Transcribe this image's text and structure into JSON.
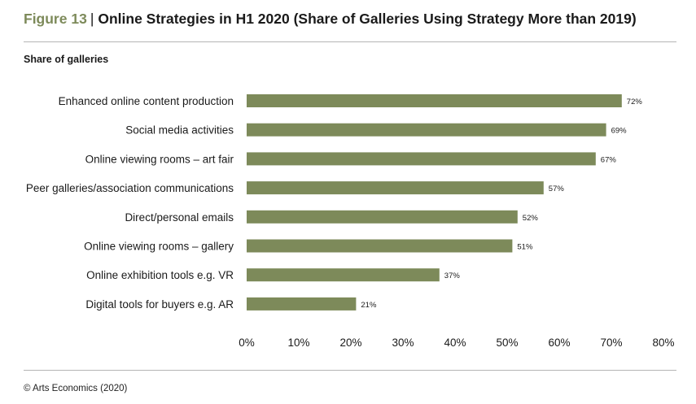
{
  "header": {
    "figure_label": "Figure 13",
    "separator": "|",
    "title": "Online Strategies in H1 2020 (Share of Galleries Using Strategy More than 2019)"
  },
  "subtitle": "Share of galleries",
  "footer": "© Arts Economics (2020)",
  "colors": {
    "bar": "#7d8a5a",
    "accent": "#7d8a5a",
    "rule": "#b5b5b5"
  },
  "chart_data": {
    "type": "bar",
    "orientation": "horizontal",
    "title": "",
    "ylabel": "Share of galleries",
    "categories": [
      "Enhanced online content production",
      "Social media activities",
      "Online viewing rooms – art fair",
      "Peer galleries/association communications",
      "Direct/personal emails",
      "Online viewing rooms – gallery",
      "Online exhibition tools e.g. VR",
      "Digital tools for buyers e.g. AR"
    ],
    "values": [
      72,
      69,
      67,
      57,
      52,
      51,
      37,
      21
    ],
    "value_labels": [
      "72%",
      "69%",
      "67%",
      "57%",
      "52%",
      "51%",
      "37%",
      "21%"
    ],
    "xlim": [
      0,
      80
    ],
    "xticks": [
      0,
      10,
      20,
      30,
      40,
      50,
      60,
      70,
      80
    ],
    "xtick_labels": [
      "0%",
      "10%",
      "20%",
      "30%",
      "40%",
      "50%",
      "60%",
      "70%",
      "80%"
    ],
    "grid": false,
    "legend": "none"
  }
}
